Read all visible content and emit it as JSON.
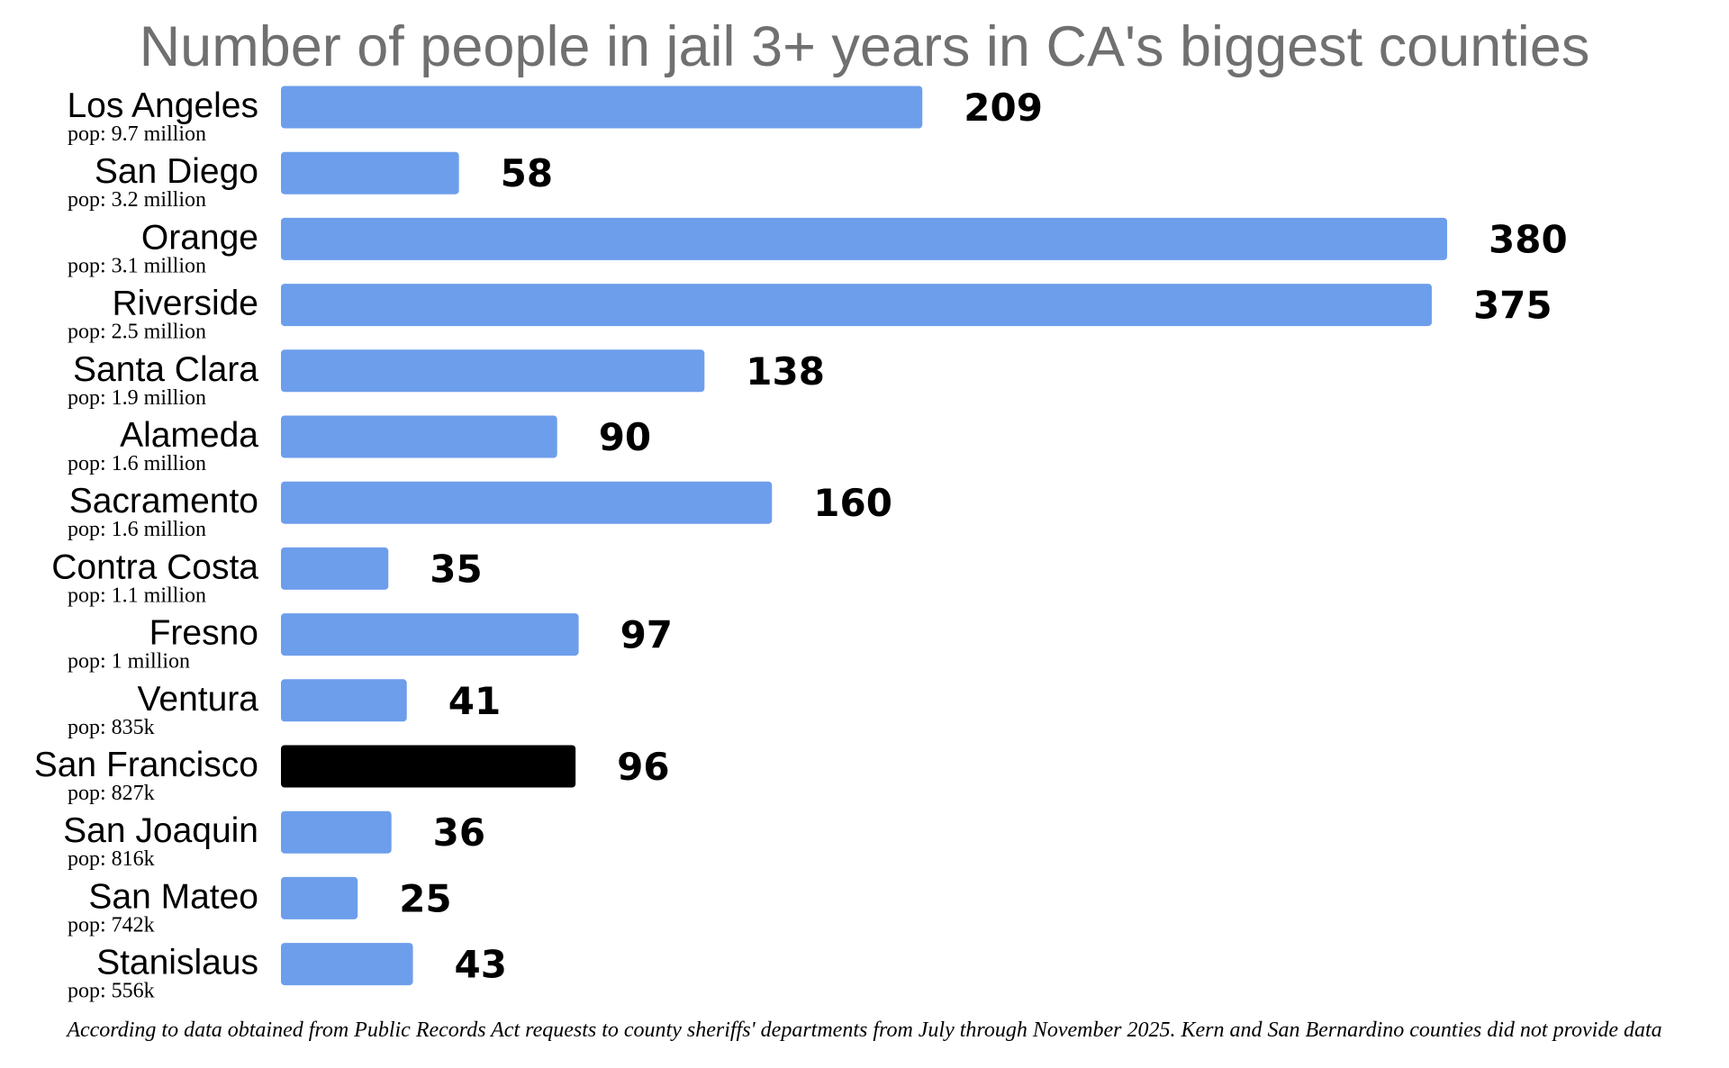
{
  "chart_data": {
    "type": "bar",
    "orientation": "horizontal",
    "title": "Number of people in jail 3+ years in CA's biggest counties",
    "xlabel": "",
    "ylabel": "",
    "xlim": [
      0,
      380
    ],
    "grid": false,
    "legend": "none",
    "categories": [
      "Los Angeles",
      "San Diego",
      "Orange",
      "Riverside",
      "Santa Clara",
      "Alameda",
      "Sacramento",
      "Contra Costa",
      "Fresno",
      "Ventura",
      "San Francisco",
      "San Joaquin",
      "San Mateo",
      "Stanislaus"
    ],
    "subtitles": [
      "pop: 9.7 million",
      "pop: 3.2 million",
      "pop: 3.1 million",
      "pop: 2.5 million",
      "pop: 1.9 million",
      "pop: 1.6 million",
      "pop: 1.6 million",
      "pop: 1.1 million",
      "pop: 1 million",
      "pop: 835k",
      "pop: 827k",
      "pop: 816k",
      "pop: 742k",
      "pop: 556k"
    ],
    "values": [
      209,
      58,
      380,
      375,
      138,
      90,
      160,
      35,
      97,
      41,
      96,
      36,
      25,
      43
    ],
    "colors": {
      "default": "#6d9eeb",
      "highlight": "#000000"
    },
    "highlight_category": "San Francisco",
    "footnote": "According to data obtained from Public Records Act requests to county sheriffs' departments from July through November 2025. Kern and San Bernardino counties did not provide data"
  }
}
